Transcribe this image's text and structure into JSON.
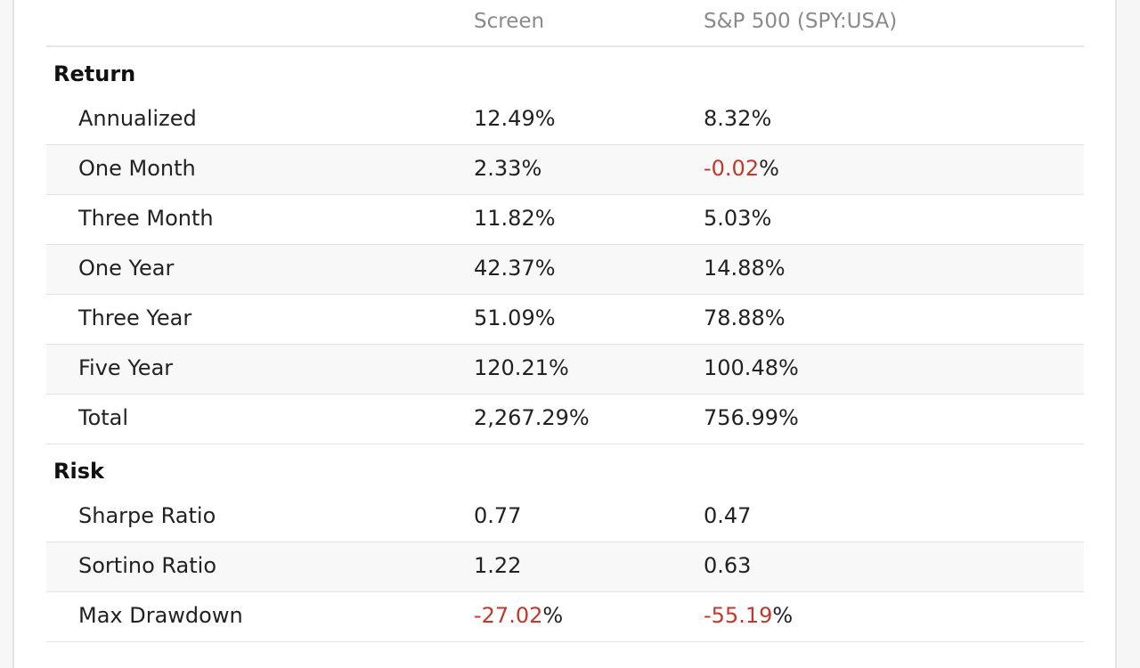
{
  "header": {
    "col_screen": "Screen",
    "col_benchmark": "S&P 500 (SPY:USA)"
  },
  "sections": [
    {
      "title": "Return",
      "rows": [
        {
          "label": "Annualized",
          "screen": {
            "num": "12.49",
            "suffix": "%",
            "neg": false
          },
          "benchmark": {
            "num": "8.32",
            "suffix": "%",
            "neg": false
          }
        },
        {
          "label": "One Month",
          "screen": {
            "num": "2.33",
            "suffix": "%",
            "neg": false
          },
          "benchmark": {
            "num": "-0.02",
            "suffix": "%",
            "neg": true
          }
        },
        {
          "label": "Three Month",
          "screen": {
            "num": "11.82",
            "suffix": "%",
            "neg": false
          },
          "benchmark": {
            "num": "5.03",
            "suffix": "%",
            "neg": false
          }
        },
        {
          "label": "One Year",
          "screen": {
            "num": "42.37",
            "suffix": "%",
            "neg": false
          },
          "benchmark": {
            "num": "14.88",
            "suffix": "%",
            "neg": false
          }
        },
        {
          "label": "Three Year",
          "screen": {
            "num": "51.09",
            "suffix": "%",
            "neg": false
          },
          "benchmark": {
            "num": "78.88",
            "suffix": "%",
            "neg": false
          }
        },
        {
          "label": "Five Year",
          "screen": {
            "num": "120.21",
            "suffix": "%",
            "neg": false
          },
          "benchmark": {
            "num": "100.48",
            "suffix": "%",
            "neg": false
          }
        },
        {
          "label": "Total",
          "screen": {
            "num": "2,267.29",
            "suffix": "%",
            "neg": false
          },
          "benchmark": {
            "num": "756.99",
            "suffix": "%",
            "neg": false
          }
        }
      ]
    },
    {
      "title": "Risk",
      "rows": [
        {
          "label": "Sharpe Ratio",
          "screen": {
            "num": "0.77",
            "suffix": "",
            "neg": false
          },
          "benchmark": {
            "num": "0.47",
            "suffix": "",
            "neg": false
          }
        },
        {
          "label": "Sortino Ratio",
          "screen": {
            "num": "1.22",
            "suffix": "",
            "neg": false
          },
          "benchmark": {
            "num": "0.63",
            "suffix": "",
            "neg": false
          }
        },
        {
          "label": "Max Drawdown",
          "screen": {
            "num": "-27.02",
            "suffix": "%",
            "neg": true
          },
          "benchmark": {
            "num": "-55.19",
            "suffix": "%",
            "neg": true
          }
        }
      ]
    }
  ],
  "colors": {
    "negative": "#c0392b",
    "header_text": "#8a8a8a",
    "stripe": "#f8f8f8"
  }
}
